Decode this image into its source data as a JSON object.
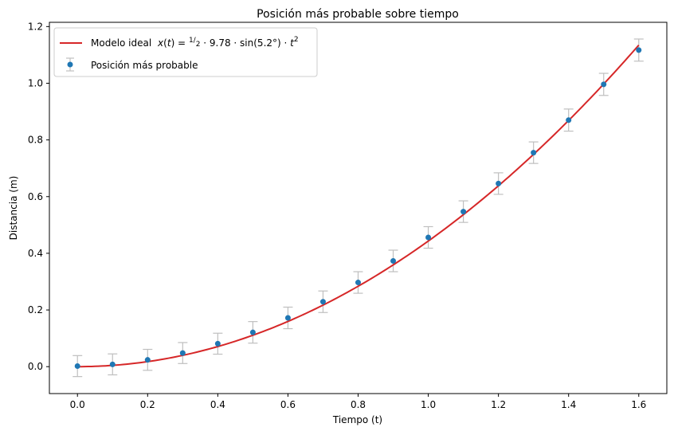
{
  "chart_data": {
    "type": "scatter",
    "title": "Posición más probable sobre tiempo",
    "xlabel": "Tiempo (t)",
    "ylabel": "Distancia (m)",
    "xlim": [
      -0.08,
      1.68
    ],
    "ylim": [
      -0.095,
      1.215
    ],
    "xticks": [
      0.0,
      0.2,
      0.4,
      0.6,
      0.8,
      1.0,
      1.2,
      1.4,
      1.6
    ],
    "xtick_labels": [
      "0.0",
      "0.2",
      "0.4",
      "0.6",
      "0.8",
      "1.0",
      "1.2",
      "1.4",
      "1.6"
    ],
    "yticks": [
      0.0,
      0.2,
      0.4,
      0.6,
      0.8,
      1.0,
      1.2
    ],
    "ytick_labels": [
      "0.0",
      "0.2",
      "0.4",
      "0.6",
      "0.8",
      "1.0",
      "1.2"
    ],
    "grid": false,
    "legend_position": "top-left",
    "series": [
      {
        "name": "Modelo ideal",
        "kind": "line",
        "color": "#d62728",
        "model": {
          "g": 9.78,
          "angle_deg": 5.2,
          "x_start": 0.0,
          "x_end": 1.6
        }
      },
      {
        "name": "Posición más probable",
        "kind": "errorbar",
        "color": "#1f77b4",
        "error_color": "#bfbfbf",
        "x": [
          0.0,
          0.1,
          0.2,
          0.3,
          0.4,
          0.5,
          0.6,
          0.7,
          0.8,
          0.9,
          1.0,
          1.1,
          1.2,
          1.3,
          1.4,
          1.5,
          1.6
        ],
        "y": [
          0.002,
          0.008,
          0.024,
          0.048,
          0.081,
          0.121,
          0.172,
          0.229,
          0.297,
          0.373,
          0.456,
          0.547,
          0.646,
          0.755,
          0.87,
          0.996,
          1.117
        ],
        "yerr": [
          0.037,
          0.037,
          0.037,
          0.037,
          0.037,
          0.038,
          0.038,
          0.038,
          0.038,
          0.038,
          0.038,
          0.038,
          0.038,
          0.038,
          0.039,
          0.039,
          0.039
        ]
      }
    ]
  }
}
